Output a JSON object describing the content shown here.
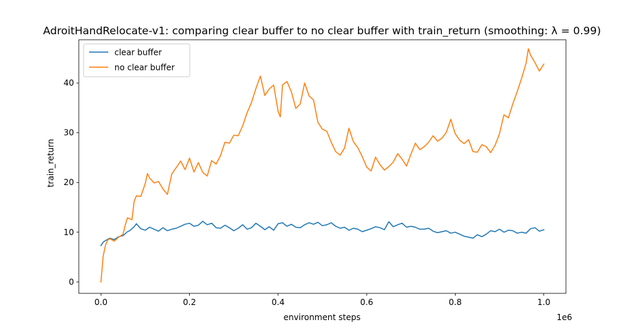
{
  "chart_data": {
    "type": "line",
    "title": "AdroitHandRelocate-v1: comparing clear buffer to no clear buffer with train_return (smoothing: λ = 0.99)",
    "xlabel": "environment steps",
    "ylabel": "train_return",
    "x_offset_label": "1e6",
    "xlim": [
      -0.05,
      1.05
    ],
    "ylim": [
      -2.3,
      48.7
    ],
    "x_ticks": [
      0.0,
      0.2,
      0.4,
      0.6,
      0.8,
      1.0
    ],
    "x_tick_labels": [
      "0.0",
      "0.2",
      "0.4",
      "0.6",
      "0.8",
      "1.0"
    ],
    "y_ticks": [
      0,
      10,
      20,
      30,
      40
    ],
    "y_tick_labels": [
      "0",
      "10",
      "20",
      "30",
      "40"
    ],
    "grid": false,
    "legend_position": "upper-left",
    "series": [
      {
        "name": "clear buffer",
        "color": "#1f77b4",
        "x": [
          0.0,
          0.005,
          0.01,
          0.02,
          0.03,
          0.04,
          0.05,
          0.06,
          0.065,
          0.075,
          0.08,
          0.09,
          0.1,
          0.11,
          0.12,
          0.13,
          0.14,
          0.15,
          0.16,
          0.17,
          0.18,
          0.19,
          0.2,
          0.21,
          0.22,
          0.23,
          0.24,
          0.25,
          0.26,
          0.27,
          0.28,
          0.29,
          0.3,
          0.31,
          0.32,
          0.33,
          0.34,
          0.35,
          0.36,
          0.37,
          0.38,
          0.39,
          0.4,
          0.41,
          0.42,
          0.43,
          0.44,
          0.45,
          0.46,
          0.47,
          0.48,
          0.49,
          0.5,
          0.51,
          0.52,
          0.53,
          0.54,
          0.55,
          0.56,
          0.57,
          0.58,
          0.59,
          0.6,
          0.61,
          0.62,
          0.63,
          0.64,
          0.65,
          0.66,
          0.67,
          0.68,
          0.69,
          0.7,
          0.71,
          0.72,
          0.73,
          0.74,
          0.75,
          0.76,
          0.77,
          0.78,
          0.79,
          0.8,
          0.81,
          0.82,
          0.83,
          0.84,
          0.85,
          0.86,
          0.87,
          0.88,
          0.89,
          0.9,
          0.91,
          0.92,
          0.93,
          0.94,
          0.95,
          0.96,
          0.97,
          0.98,
          0.99,
          1.0
        ],
        "y": [
          7.3,
          8.0,
          8.3,
          8.8,
          8.5,
          9.1,
          9.3,
          10.1,
          10.3,
          11.1,
          11.7,
          10.7,
          10.4,
          11.0,
          10.6,
          10.2,
          10.9,
          10.3,
          10.6,
          10.8,
          11.2,
          11.6,
          11.8,
          11.2,
          11.4,
          12.2,
          11.5,
          11.8,
          10.9,
          10.8,
          11.4,
          10.9,
          10.3,
          10.8,
          11.5,
          10.6,
          10.9,
          11.8,
          11.2,
          10.5,
          11.1,
          10.4,
          11.7,
          11.9,
          11.2,
          11.6,
          11.0,
          10.9,
          11.5,
          11.9,
          11.6,
          12.0,
          11.3,
          11.5,
          11.9,
          11.2,
          10.8,
          11.0,
          10.4,
          10.8,
          10.6,
          10.1,
          10.4,
          10.7,
          11.1,
          10.9,
          10.5,
          12.1,
          11.1,
          11.5,
          11.8,
          11.0,
          11.2,
          11.0,
          10.6,
          10.6,
          10.8,
          10.2,
          9.9,
          10.1,
          10.3,
          9.8,
          10.0,
          9.6,
          9.2,
          9.0,
          8.8,
          9.5,
          9.1,
          9.6,
          10.3,
          10.1,
          10.6,
          10.0,
          10.4,
          10.3,
          9.8,
          10.0,
          9.8,
          10.7,
          10.9,
          10.2,
          10.5
        ]
      },
      {
        "name": "no clear buffer",
        "color": "#ff7f0e",
        "x": [
          0.0,
          0.002,
          0.005,
          0.01,
          0.015,
          0.02,
          0.03,
          0.04,
          0.05,
          0.055,
          0.06,
          0.07,
          0.075,
          0.08,
          0.09,
          0.1,
          0.105,
          0.11,
          0.12,
          0.13,
          0.14,
          0.15,
          0.16,
          0.17,
          0.18,
          0.19,
          0.2,
          0.21,
          0.22,
          0.23,
          0.24,
          0.25,
          0.26,
          0.27,
          0.28,
          0.29,
          0.3,
          0.31,
          0.32,
          0.33,
          0.34,
          0.35,
          0.355,
          0.36,
          0.37,
          0.38,
          0.39,
          0.4,
          0.405,
          0.41,
          0.42,
          0.43,
          0.44,
          0.45,
          0.46,
          0.47,
          0.48,
          0.49,
          0.5,
          0.51,
          0.52,
          0.53,
          0.54,
          0.55,
          0.56,
          0.57,
          0.58,
          0.59,
          0.6,
          0.61,
          0.62,
          0.63,
          0.64,
          0.65,
          0.66,
          0.67,
          0.68,
          0.69,
          0.7,
          0.71,
          0.72,
          0.73,
          0.74,
          0.75,
          0.76,
          0.77,
          0.78,
          0.79,
          0.8,
          0.81,
          0.82,
          0.83,
          0.84,
          0.85,
          0.86,
          0.87,
          0.88,
          0.89,
          0.9,
          0.91,
          0.92,
          0.93,
          0.94,
          0.95,
          0.96,
          0.965,
          0.97,
          0.98,
          0.99,
          1.0
        ],
        "y": [
          0.0,
          2.0,
          5.2,
          7.3,
          8.4,
          8.7,
          8.2,
          9.0,
          9.6,
          11.5,
          12.9,
          12.5,
          16.2,
          17.3,
          17.2,
          19.8,
          21.8,
          20.9,
          19.9,
          20.2,
          18.7,
          17.6,
          21.7,
          23.0,
          24.3,
          22.6,
          24.9,
          22.1,
          24.0,
          22.0,
          21.3,
          24.4,
          23.7,
          25.4,
          28.1,
          27.9,
          29.5,
          29.4,
          31.4,
          34.0,
          36.1,
          38.9,
          40.2,
          41.4,
          37.5,
          38.8,
          39.6,
          34.3,
          33.2,
          39.6,
          40.3,
          38.2,
          34.9,
          35.8,
          40.0,
          37.4,
          36.6,
          32.1,
          30.7,
          30.3,
          28.1,
          26.2,
          25.5,
          26.9,
          30.9,
          28.2,
          27.0,
          25.2,
          23.1,
          22.3,
          25.1,
          23.6,
          22.5,
          23.2,
          24.1,
          25.8,
          24.7,
          23.3,
          25.7,
          27.9,
          26.6,
          27.2,
          28.1,
          29.4,
          28.3,
          28.9,
          30.1,
          32.7,
          29.8,
          28.5,
          27.8,
          28.6,
          26.2,
          26.1,
          27.6,
          27.2,
          26.0,
          27.5,
          29.8,
          33.6,
          33.0,
          35.8,
          38.3,
          41.0,
          44.0,
          46.9,
          45.6,
          44.1,
          42.4,
          43.8
        ]
      }
    ]
  }
}
